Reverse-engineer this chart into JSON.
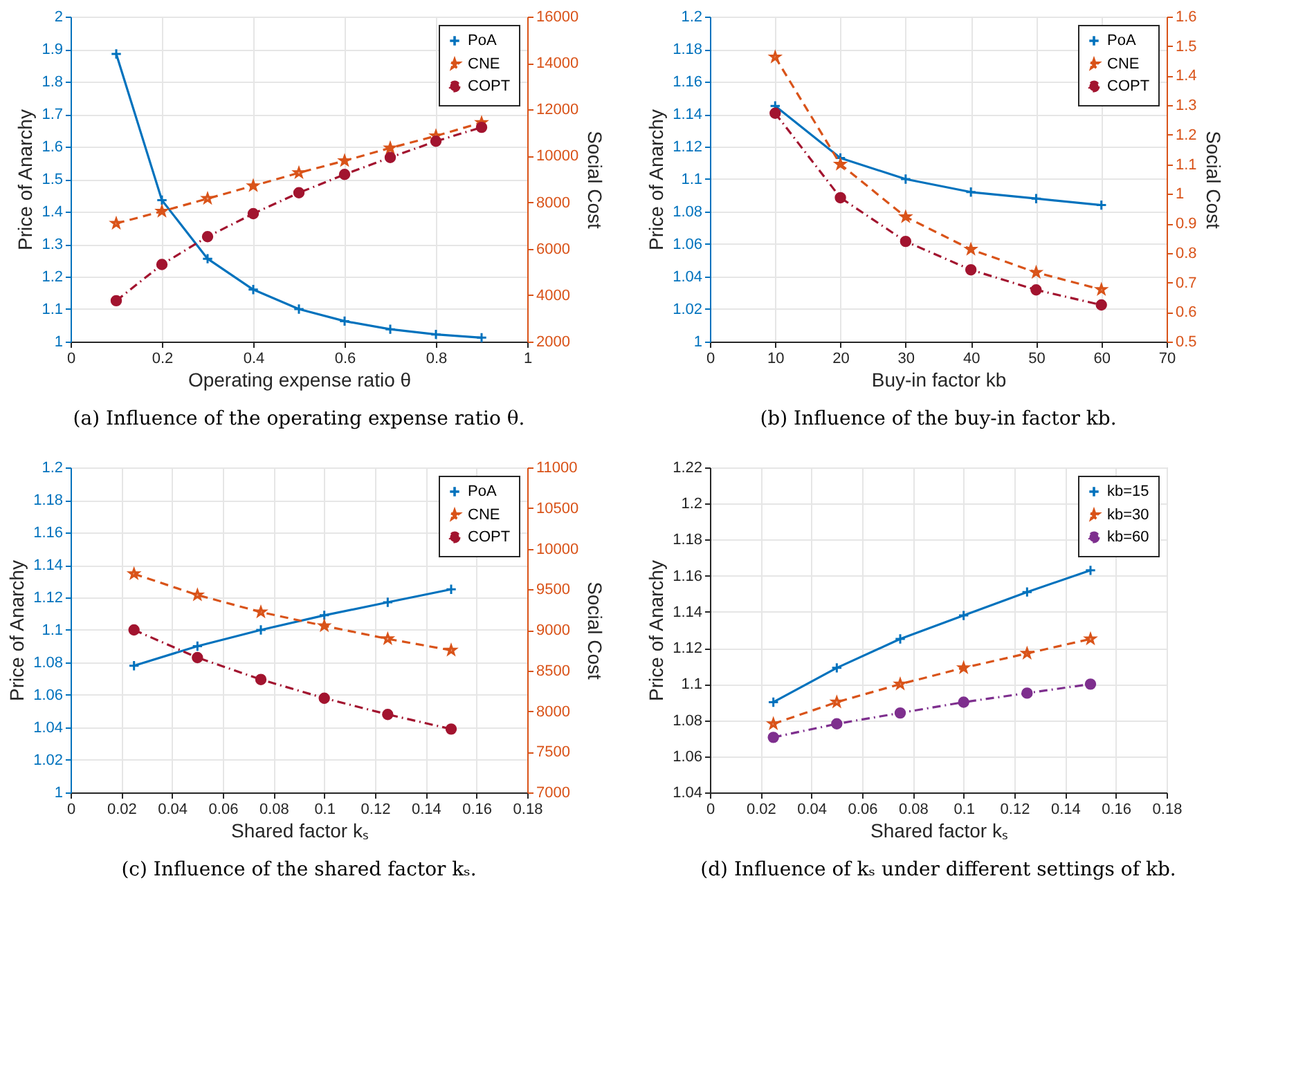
{
  "chart_data": [
    {
      "type": "line",
      "title": "(a) Influence of the operating expense ratio θ.",
      "xlabel": "Operating expense ratio θ",
      "ylabel": "Price of Anarchy",
      "y2label": "Social Cost",
      "x": [
        0.1,
        0.2,
        0.3,
        0.4,
        0.5,
        0.6,
        0.7,
        0.8,
        0.9
      ],
      "xlim": [
        0,
        1
      ],
      "xticks": [
        0,
        0.2,
        0.4,
        0.6,
        0.8,
        1
      ],
      "ylim": [
        1,
        2
      ],
      "yticks": [
        1,
        1.1,
        1.2,
        1.3,
        1.4,
        1.5,
        1.6,
        1.7,
        1.8,
        1.9,
        2
      ],
      "y2lim": [
        2000,
        16000
      ],
      "y2ticks": [
        2000,
        4000,
        6000,
        8000,
        10000,
        12000,
        14000,
        16000
      ],
      "grid": true,
      "legend": "top right",
      "series": [
        {
          "name": "PoA",
          "color": "#0072bd",
          "marker": "cross",
          "line_style": "solid",
          "values": [
            1.885,
            1.435,
            1.255,
            1.16,
            1.1,
            1.063,
            1.038,
            1.022,
            1.012
          ]
        },
        {
          "name": "CNE",
          "color": "#d95319",
          "marker": "star",
          "line_style": "dashed",
          "axis": "y2",
          "values": [
            7090,
            7610,
            8160,
            8710,
            9270,
            9790,
            10340,
            10860,
            11430
          ]
        },
        {
          "name": "COPT",
          "color": "#a2142f",
          "marker": "circle",
          "line_style": "dotted",
          "axis": "y2",
          "values": [
            3760,
            5320,
            6520,
            7510,
            8410,
            9200,
            9930,
            10630,
            11230
          ]
        }
      ]
    },
    {
      "type": "line",
      "title": "(b) Influence of the buy-in factor kb.",
      "xlabel": "Buy-in factor kb",
      "ylabel": "Price of Anarchy",
      "y2label": "Social Cost",
      "x": [
        10,
        20,
        30,
        40,
        50,
        60
      ],
      "xlim": [
        0,
        70
      ],
      "xticks": [
        0,
        10,
        20,
        30,
        40,
        50,
        60,
        70
      ],
      "ylim": [
        1,
        1.2
      ],
      "yticks": [
        1,
        1.02,
        1.04,
        1.06,
        1.08,
        1.1,
        1.12,
        1.14,
        1.16,
        1.18,
        1.2
      ],
      "y2lim": [
        0.5,
        1.6
      ],
      "y2ticks": [
        0.5,
        0.6,
        0.7,
        0.8,
        0.9,
        1,
        1.1,
        1.2,
        1.3,
        1.4,
        1.5,
        1.6
      ],
      "grid": true,
      "legend": "top right",
      "series": [
        {
          "name": "PoA",
          "color": "#0072bd",
          "marker": "cross",
          "line_style": "solid",
          "values": [
            1.145,
            1.113,
            1.1,
            1.092,
            1.088,
            1.084
          ]
        },
        {
          "name": "CNE",
          "color": "#d95319",
          "marker": "star",
          "line_style": "dashed",
          "axis": "y2",
          "values": [
            1.463,
            1.1,
            0.922,
            0.812,
            0.734,
            0.676
          ]
        },
        {
          "name": "COPT",
          "color": "#a2142f",
          "marker": "circle",
          "line_style": "dotted",
          "axis": "y2",
          "values": [
            1.273,
            0.987,
            0.839,
            0.743,
            0.675,
            0.624
          ]
        }
      ]
    },
    {
      "type": "line",
      "title": "(c) Influence of the shared factor kₛ.",
      "xlabel": "Shared factor kₛ",
      "ylabel": "Price of Anarchy",
      "y2label": "Social Cost",
      "x": [
        0.025,
        0.05,
        0.075,
        0.1,
        0.125,
        0.15
      ],
      "xlim": [
        0,
        0.18
      ],
      "xticks": [
        0,
        0.02,
        0.04,
        0.06,
        0.08,
        0.1,
        0.12,
        0.14,
        0.16,
        0.18
      ],
      "ylim": [
        1,
        1.2
      ],
      "yticks": [
        1,
        1.02,
        1.04,
        1.06,
        1.08,
        1.1,
        1.12,
        1.14,
        1.16,
        1.18,
        1.2
      ],
      "y2lim": [
        7000,
        11000
      ],
      "y2ticks": [
        7000,
        7500,
        8000,
        8500,
        9000,
        9500,
        10000,
        10500,
        11000
      ],
      "grid": true,
      "legend": "top right",
      "series": [
        {
          "name": "PoA",
          "color": "#0072bd",
          "marker": "cross",
          "line_style": "solid",
          "values": [
            1.078,
            1.09,
            1.1,
            1.109,
            1.117,
            1.125
          ]
        },
        {
          "name": "CNE",
          "color": "#d95319",
          "marker": "star",
          "line_style": "dashed",
          "axis": "y2",
          "values": [
            9690,
            9430,
            9220,
            9050,
            8890,
            8750
          ]
        },
        {
          "name": "COPT",
          "color": "#a2142f",
          "marker": "circle",
          "line_style": "dotted",
          "axis": "y2",
          "values": [
            9000,
            8660,
            8390,
            8160,
            7960,
            7780
          ]
        }
      ]
    },
    {
      "type": "line",
      "title": "(d) Influence of kₛ under different settings of kb.",
      "xlabel": "Shared factor kₛ",
      "ylabel": "Price of Anarchy",
      "x": [
        0.025,
        0.05,
        0.075,
        0.1,
        0.125,
        0.15
      ],
      "xlim": [
        0,
        0.18
      ],
      "xticks": [
        0,
        0.02,
        0.04,
        0.06,
        0.08,
        0.1,
        0.12,
        0.14,
        0.16,
        0.18
      ],
      "ylim": [
        1.04,
        1.22
      ],
      "yticks": [
        1.04,
        1.06,
        1.08,
        1.1,
        1.12,
        1.14,
        1.16,
        1.18,
        1.2,
        1.22
      ],
      "grid": true,
      "legend": "top right",
      "series": [
        {
          "name": "kb=15",
          "color": "#0072bd",
          "marker": "cross",
          "line_style": "solid",
          "values": [
            1.09,
            1.109,
            1.125,
            1.138,
            1.151,
            1.163
          ]
        },
        {
          "name": "kb=30",
          "color": "#d95319",
          "marker": "star",
          "line_style": "dashed",
          "values": [
            1.078,
            1.09,
            1.1,
            1.109,
            1.117,
            1.125
          ]
        },
        {
          "name": "kb=60",
          "color": "#7e2f8e",
          "marker": "circle",
          "line_style": "dotted",
          "values": [
            1.0705,
            1.078,
            1.084,
            1.09,
            1.095,
            1.1
          ]
        }
      ]
    }
  ]
}
